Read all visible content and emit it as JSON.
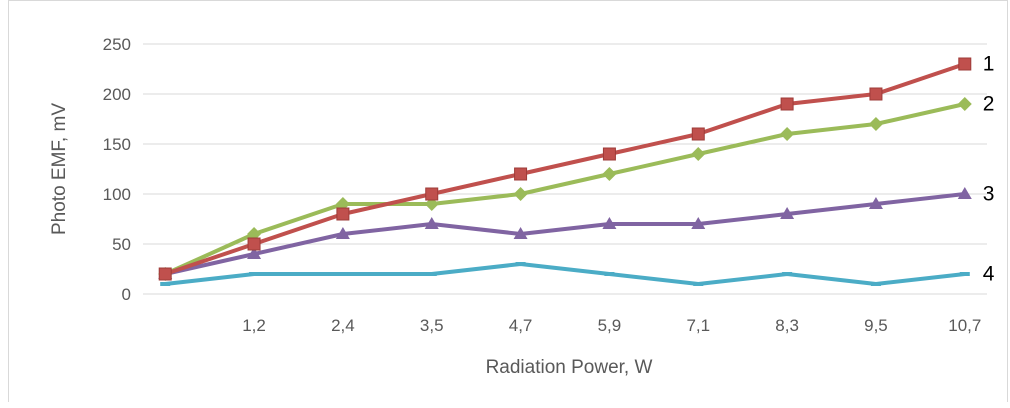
{
  "chart_data": {
    "type": "line",
    "title": "",
    "xlabel": "Radiation Power, W",
    "ylabel": "Photo EMF, mV",
    "categories": [
      "",
      "1,2",
      "2,4",
      "3,5",
      "4,7",
      "5,9",
      "7,1",
      "8,3",
      "9,5",
      "10,7"
    ],
    "ylim": [
      0,
      250
    ],
    "yticks": [
      0,
      50,
      100,
      150,
      200,
      250
    ],
    "grid": "horizontal",
    "legend": "none",
    "series": [
      {
        "label": "1",
        "color": "#c0504d",
        "marker": "square",
        "values": [
          20,
          50,
          80,
          100,
          120,
          140,
          160,
          190,
          200,
          230
        ]
      },
      {
        "label": "2",
        "color": "#9bbb59",
        "marker": "diamond",
        "values": [
          20,
          60,
          90,
          90,
          100,
          120,
          140,
          160,
          170,
          190
        ]
      },
      {
        "label": "3",
        "color": "#8064a2",
        "marker": "triangle",
        "values": [
          20,
          40,
          60,
          70,
          60,
          70,
          70,
          80,
          90,
          100
        ]
      },
      {
        "label": "4",
        "color": "#4bacc6",
        "marker": "dash",
        "values": [
          10,
          20,
          20,
          20,
          30,
          20,
          10,
          20,
          10,
          20
        ]
      }
    ]
  }
}
